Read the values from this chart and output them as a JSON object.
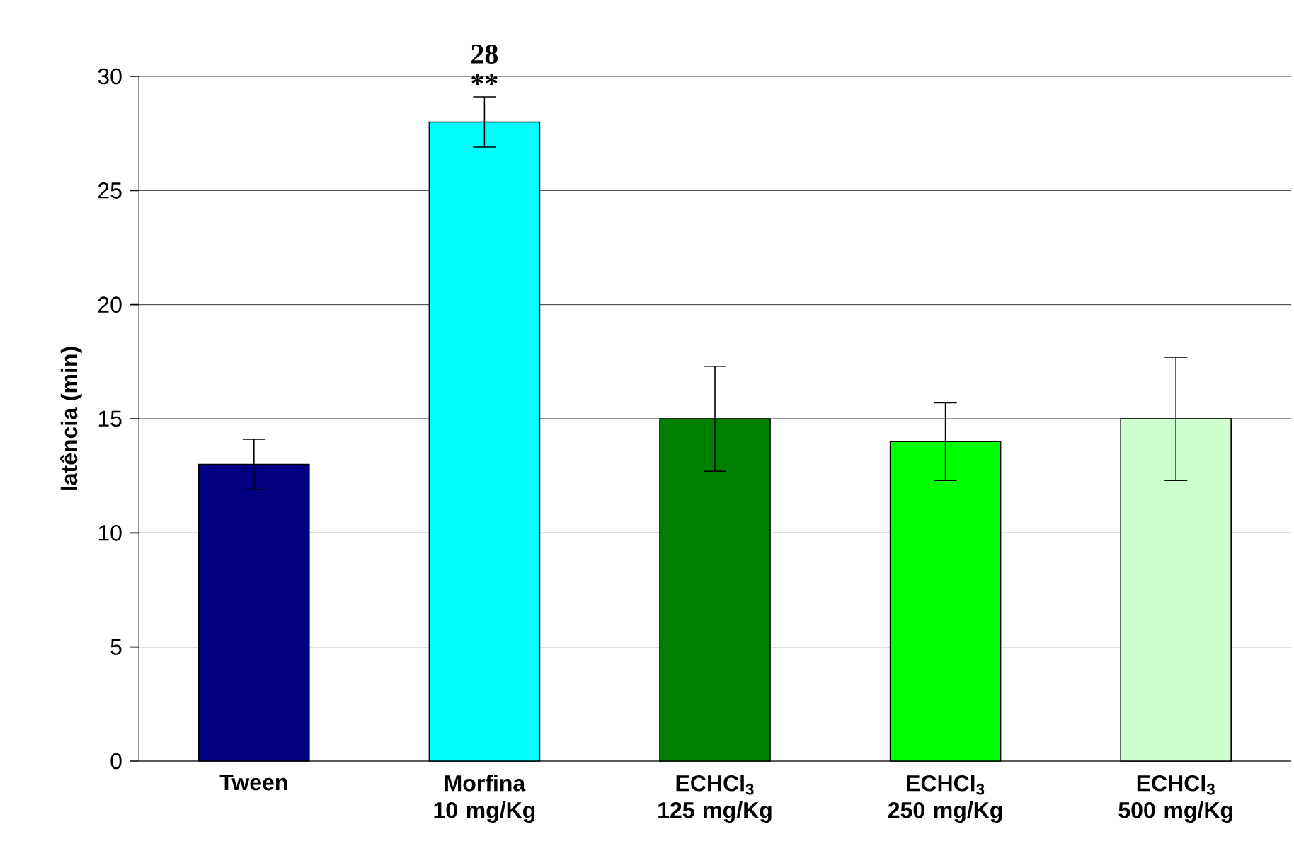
{
  "chart_data": {
    "type": "bar",
    "ylabel": "latência (min)",
    "categories": [
      "Tween",
      "Morfina 10 mg/Kg",
      "ECHCl$_{3}$ 125 mg/Kg",
      "ECHCl$_{3}$ 250 mg/Kg",
      "ECHCl$_{3}$ 500 mg/Kg"
    ],
    "values": [
      13,
      28,
      15,
      14,
      15
    ],
    "errors": [
      1.1,
      1.1,
      2.3,
      1.7,
      2.7
    ],
    "colors": [
      "#000080",
      "#00ffff",
      "#008000",
      "#00ff00",
      "#ccffcc"
    ],
    "value_labels": [
      null,
      "28",
      null,
      null,
      null
    ],
    "annotations": [
      {
        "text": "**",
        "x": "Morfina 10 mg/Kg",
        "y": 29.2
      }
    ],
    "ylim": [
      0,
      30
    ],
    "yticks": [
      0,
      5,
      10,
      15,
      20,
      25,
      30
    ],
    "grid": "y"
  }
}
